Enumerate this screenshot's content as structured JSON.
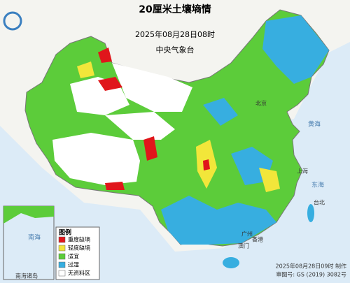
{
  "header": {
    "title": "20厘米土壤墒情",
    "time": "2025年08月28日08时",
    "issuer": "中央气象台"
  },
  "legend": {
    "title": "图例",
    "items": [
      {
        "label": "重度缺墒",
        "color": "#e0161b"
      },
      {
        "label": "轻度缺墒",
        "color": "#f2e63a"
      },
      {
        "label": "适宜",
        "color": "#5ccc3a"
      },
      {
        "label": "过湿",
        "color": "#37aee0"
      },
      {
        "label": "无资料区",
        "color": "#ffffff"
      }
    ]
  },
  "labels": [
    "黄海",
    "东海",
    "南海",
    "北京",
    "上海",
    "广州",
    "台北",
    "香港",
    "澳门",
    "南海诸岛"
  ],
  "footer": {
    "made": "2025年08月28日09时 制作",
    "approval": "审图号: GS (2019) 3082号"
  }
}
